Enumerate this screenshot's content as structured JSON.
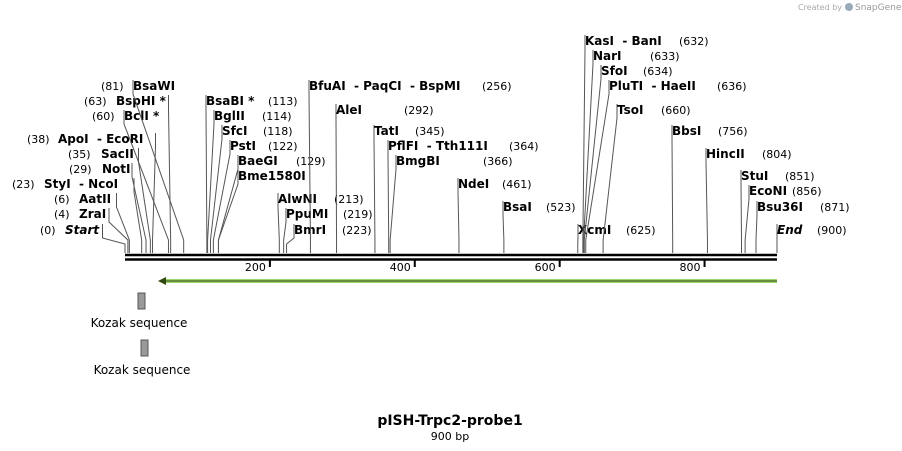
{
  "brand": {
    "created_by": "Created by",
    "name": "SnapGene"
  },
  "map": {
    "title": "pISH-Trpc2-probe1",
    "length_label": "900 bp",
    "length": 900,
    "ruler_ticks": [
      200,
      400,
      600,
      800
    ],
    "sites": [
      {
        "name": "Start",
        "pos": 0,
        "pos_label": "(0)"
      },
      {
        "name": "ZraI",
        "pos": 4,
        "pos_label": "(4)"
      },
      {
        "name": "AatII",
        "pos": 6,
        "pos_label": "(6)"
      },
      {
        "name": "StyI  - NcoI",
        "pos": 23,
        "pos_label": "(23)"
      },
      {
        "name": "NotI",
        "pos": 29,
        "pos_label": "(29)"
      },
      {
        "name": "SacII",
        "pos": 35,
        "pos_label": "(35)"
      },
      {
        "name": "ApoI  - EcoRI",
        "pos": 38,
        "pos_label": "(38)"
      },
      {
        "name": "BclI *",
        "pos": 60,
        "pos_label": "(60)"
      },
      {
        "name": "BspHI *",
        "pos": 63,
        "pos_label": "(63)"
      },
      {
        "name": "BsaWI",
        "pos": 81,
        "pos_label": "(81)"
      },
      {
        "name": "BsaBI *",
        "pos": 113,
        "pos_label": "(113)"
      },
      {
        "name": "BglII",
        "pos": 114,
        "pos_label": "(114)"
      },
      {
        "name": "SfcI",
        "pos": 118,
        "pos_label": "(118)"
      },
      {
        "name": "PstI",
        "pos": 122,
        "pos_label": "(122)"
      },
      {
        "name": "BaeGI",
        "pos": 129,
        "pos_label": "(129)"
      },
      {
        "name": "Bme1580I",
        "pos": 129
      },
      {
        "name": "AlwNI",
        "pos": 213,
        "pos_label": "(213)"
      },
      {
        "name": "PpuMI",
        "pos": 219,
        "pos_label": "(219)"
      },
      {
        "name": "BmrI",
        "pos": 223,
        "pos_label": "(223)"
      },
      {
        "name": "BfuAI  - PaqCI  - BspMI",
        "pos": 256,
        "pos_label": "(256)"
      },
      {
        "name": "AleI",
        "pos": 292,
        "pos_label": "(292)"
      },
      {
        "name": "TatI",
        "pos": 345,
        "pos_label": "(345)"
      },
      {
        "name": "PflFI  - Tth111I",
        "pos": 364,
        "pos_label": "(364)"
      },
      {
        "name": "BmgBI",
        "pos": 366,
        "pos_label": "(366)"
      },
      {
        "name": "NdeI",
        "pos": 461,
        "pos_label": "(461)"
      },
      {
        "name": "BsaI",
        "pos": 523,
        "pos_label": "(523)"
      },
      {
        "name": "XcmI",
        "pos": 625,
        "pos_label": "(625)"
      },
      {
        "name": "KasI  - BanI",
        "pos": 632,
        "pos_label": "(632)"
      },
      {
        "name": "NarI",
        "pos": 633,
        "pos_label": "(633)"
      },
      {
        "name": "SfoI",
        "pos": 634,
        "pos_label": "(634)"
      },
      {
        "name": "PluTI  - HaeII",
        "pos": 636,
        "pos_label": "(636)"
      },
      {
        "name": "TsoI",
        "pos": 660,
        "pos_label": "(660)"
      },
      {
        "name": "BbsI",
        "pos": 756,
        "pos_label": "(756)"
      },
      {
        "name": "HincII",
        "pos": 804,
        "pos_label": "(804)"
      },
      {
        "name": "StuI",
        "pos": 851,
        "pos_label": "(851)"
      },
      {
        "name": "EcoNI",
        "pos": 856,
        "pos_label": "(856)"
      },
      {
        "name": "Bsu36I",
        "pos": 871,
        "pos_label": "(871)"
      },
      {
        "name": "End",
        "pos": 900,
        "pos_label": "(900)"
      }
    ],
    "features": [
      {
        "name": "Kozak sequence"
      },
      {
        "name": "Kozak sequence"
      }
    ]
  }
}
